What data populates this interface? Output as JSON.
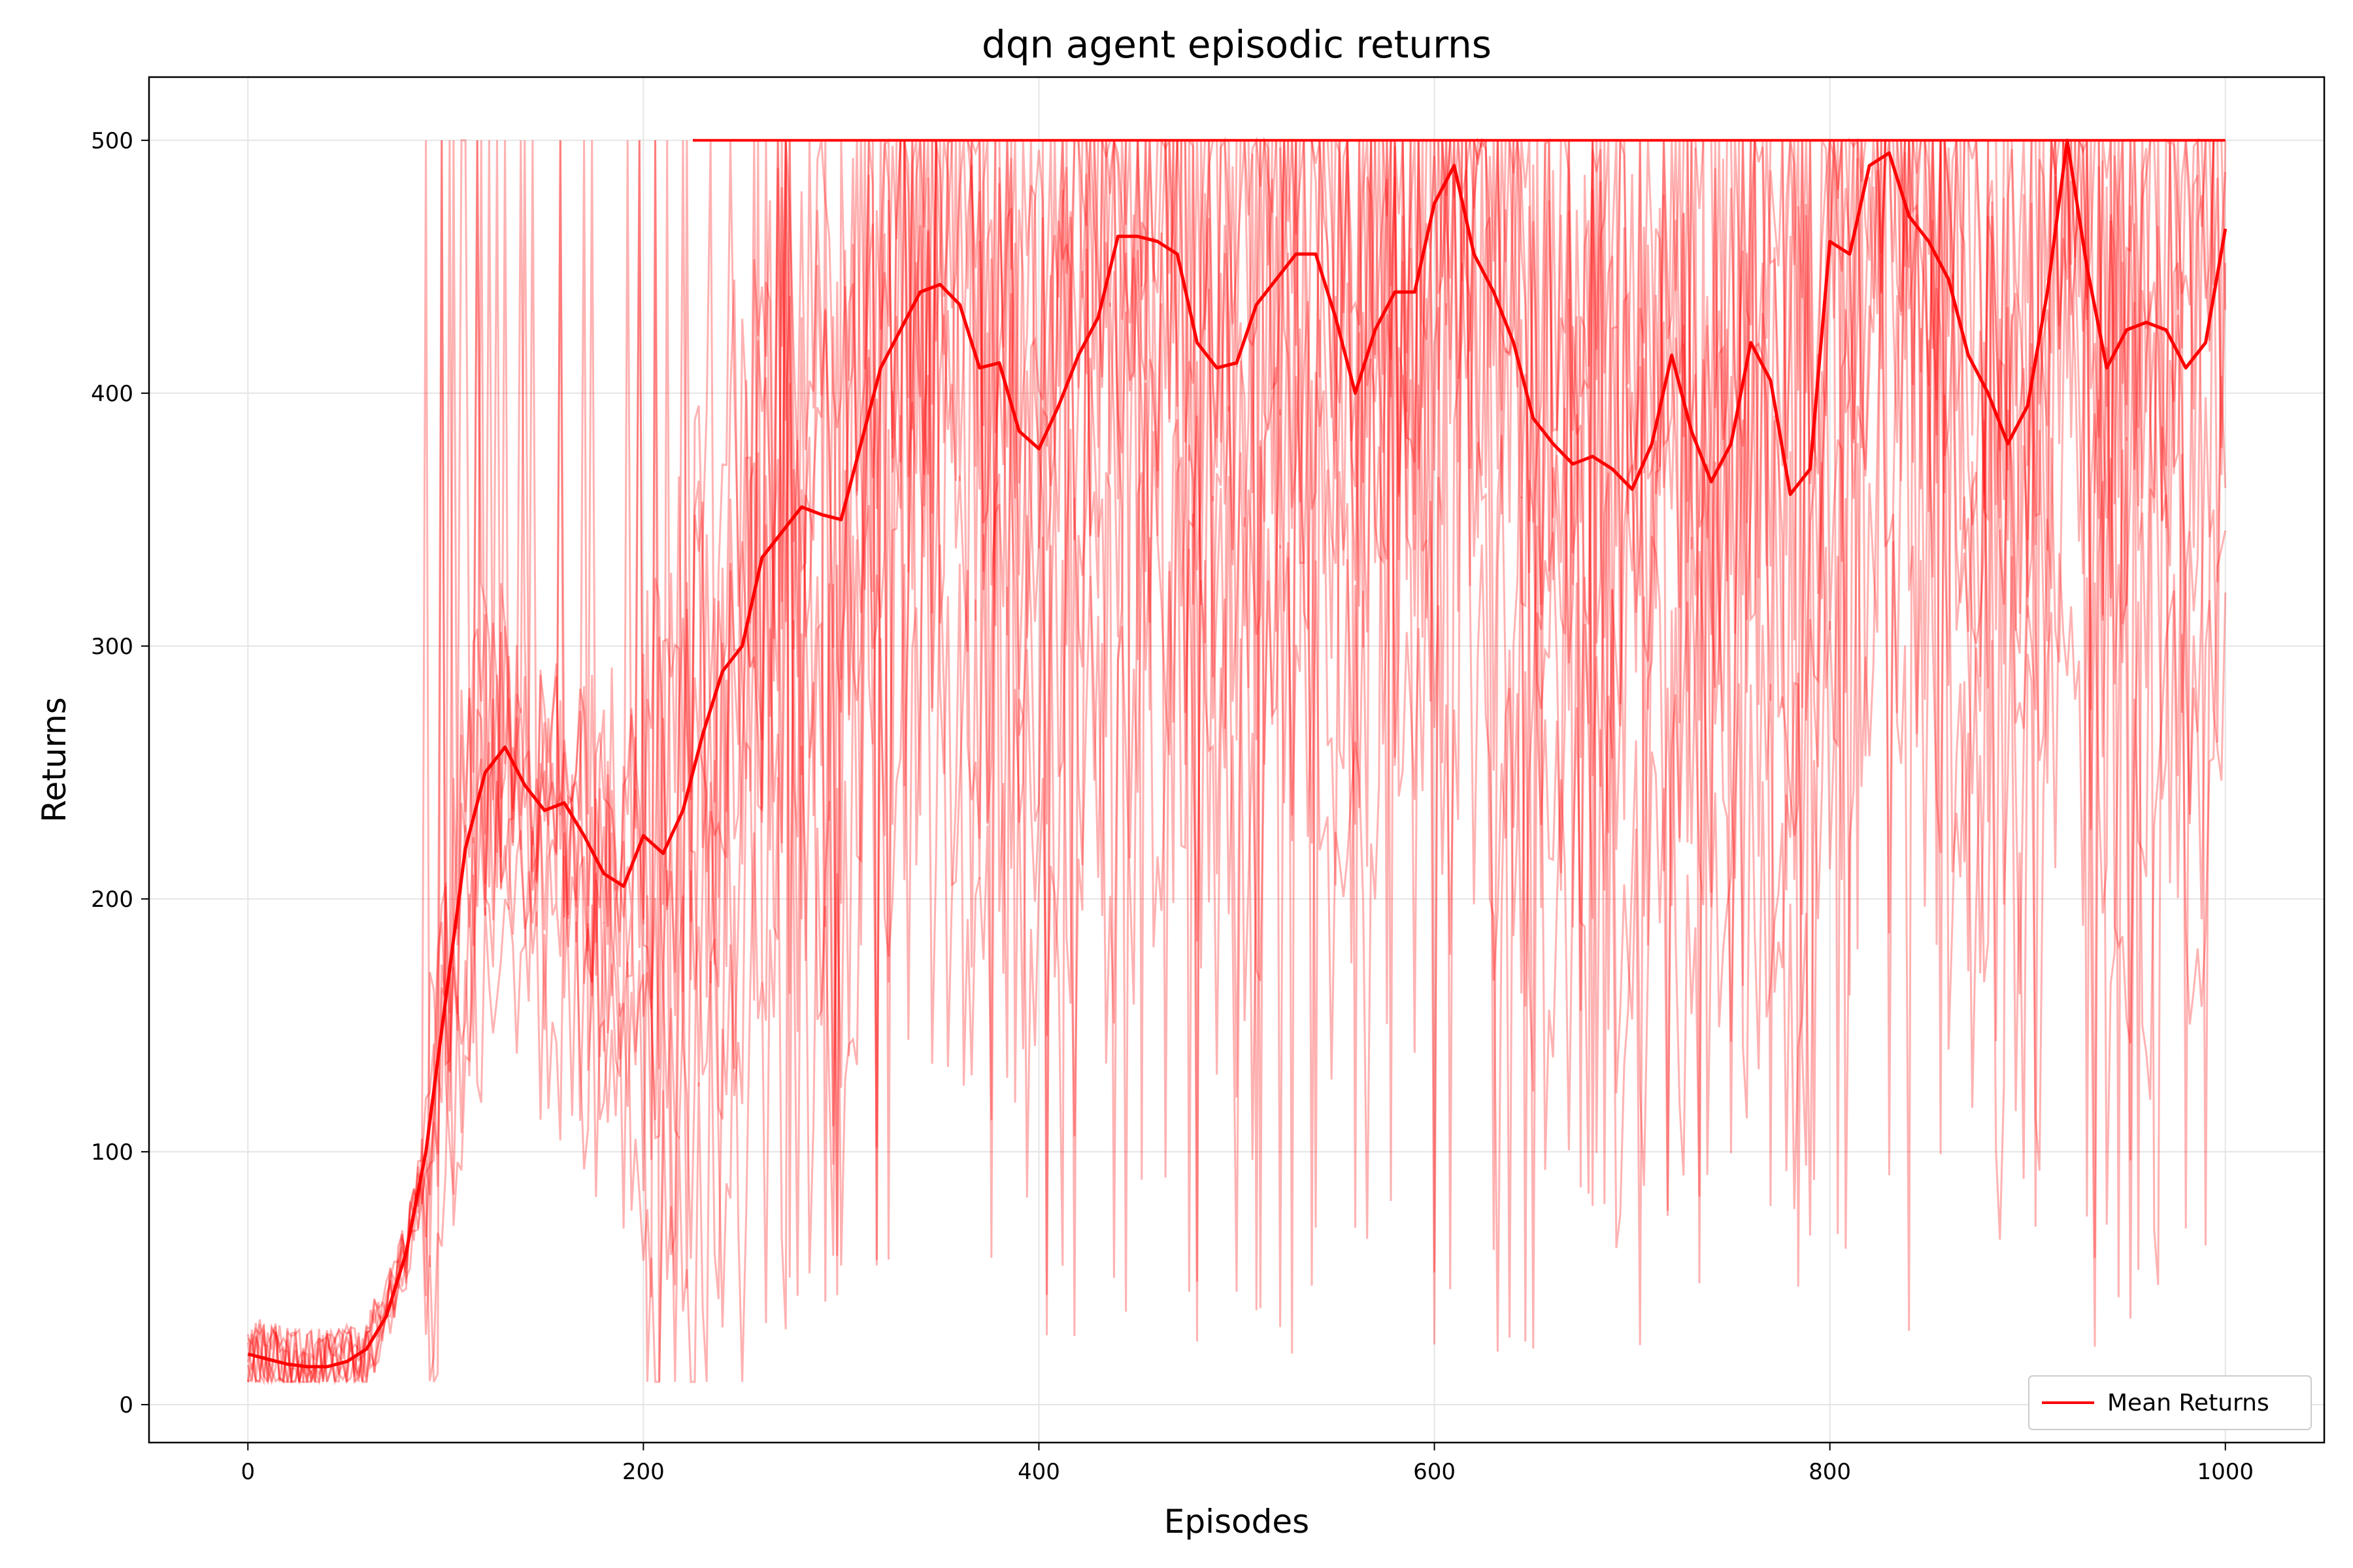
{
  "chart_data": {
    "type": "line",
    "title": "dqn agent episodic returns",
    "xlabel": "Episodes",
    "ylabel": "Returns",
    "xlim": [
      -50,
      1050
    ],
    "ylim": [
      -15,
      525
    ],
    "xticks": [
      0,
      200,
      400,
      600,
      800,
      1000
    ],
    "yticks": [
      0,
      100,
      200,
      300,
      400,
      500
    ],
    "grid": true,
    "legend": {
      "position": "lower-right",
      "entries": [
        "Mean Returns"
      ]
    },
    "colors": {
      "series": "#ff0000",
      "runs": "#ff0000"
    },
    "runs_alpha": 0.3,
    "mean_series": {
      "name": "Mean Returns",
      "points": [
        [
          0,
          20
        ],
        [
          10,
          18
        ],
        [
          20,
          16
        ],
        [
          30,
          15
        ],
        [
          40,
          15
        ],
        [
          50,
          17
        ],
        [
          60,
          22
        ],
        [
          70,
          35
        ],
        [
          80,
          60
        ],
        [
          90,
          100
        ],
        [
          100,
          160
        ],
        [
          110,
          220
        ],
        [
          120,
          250
        ],
        [
          130,
          260
        ],
        [
          140,
          245
        ],
        [
          150,
          235
        ],
        [
          160,
          238
        ],
        [
          170,
          225
        ],
        [
          180,
          210
        ],
        [
          190,
          205
        ],
        [
          200,
          225
        ],
        [
          210,
          218
        ],
        [
          220,
          235
        ],
        [
          230,
          265
        ],
        [
          240,
          290
        ],
        [
          250,
          300
        ],
        [
          260,
          335
        ],
        [
          270,
          345
        ],
        [
          280,
          355
        ],
        [
          290,
          352
        ],
        [
          300,
          350
        ],
        [
          310,
          380
        ],
        [
          320,
          410
        ],
        [
          330,
          425
        ],
        [
          340,
          440
        ],
        [
          350,
          443
        ],
        [
          360,
          435
        ],
        [
          370,
          410
        ],
        [
          380,
          412
        ],
        [
          390,
          385
        ],
        [
          400,
          378
        ],
        [
          410,
          395
        ],
        [
          420,
          415
        ],
        [
          430,
          430
        ],
        [
          440,
          462
        ],
        [
          450,
          462
        ],
        [
          460,
          460
        ],
        [
          470,
          455
        ],
        [
          480,
          420
        ],
        [
          490,
          410
        ],
        [
          500,
          412
        ],
        [
          510,
          435
        ],
        [
          520,
          445
        ],
        [
          530,
          455
        ],
        [
          540,
          455
        ],
        [
          550,
          430
        ],
        [
          560,
          400
        ],
        [
          570,
          425
        ],
        [
          580,
          440
        ],
        [
          590,
          440
        ],
        [
          600,
          475
        ],
        [
          610,
          490
        ],
        [
          620,
          455
        ],
        [
          630,
          440
        ],
        [
          640,
          420
        ],
        [
          650,
          390
        ],
        [
          660,
          380
        ],
        [
          670,
          372
        ],
        [
          680,
          375
        ],
        [
          690,
          370
        ],
        [
          700,
          362
        ],
        [
          710,
          380
        ],
        [
          720,
          415
        ],
        [
          730,
          385
        ],
        [
          740,
          365
        ],
        [
          750,
          380
        ],
        [
          760,
          420
        ],
        [
          770,
          405
        ],
        [
          780,
          360
        ],
        [
          790,
          370
        ],
        [
          800,
          460
        ],
        [
          810,
          455
        ],
        [
          820,
          490
        ],
        [
          830,
          495
        ],
        [
          840,
          470
        ],
        [
          850,
          460
        ],
        [
          860,
          445
        ],
        [
          870,
          415
        ],
        [
          880,
          400
        ],
        [
          890,
          380
        ],
        [
          900,
          395
        ],
        [
          910,
          440
        ],
        [
          920,
          500
        ],
        [
          930,
          450
        ],
        [
          940,
          410
        ],
        [
          950,
          425
        ],
        [
          960,
          428
        ],
        [
          970,
          425
        ],
        [
          980,
          410
        ],
        [
          990,
          420
        ],
        [
          1000,
          465
        ]
      ]
    }
  }
}
